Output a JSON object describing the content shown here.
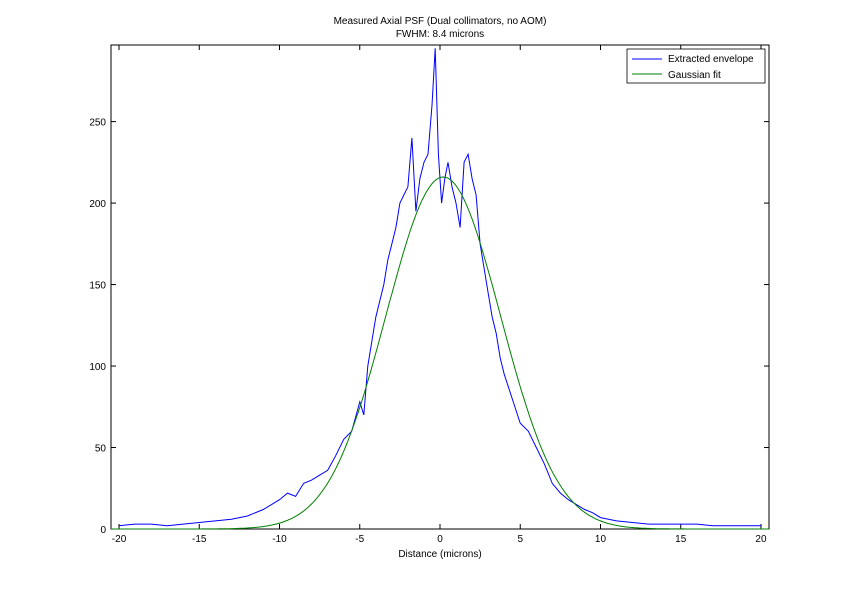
{
  "chart_data": {
    "type": "line",
    "title": "Measured Axial PSF (Dual collimators, no AOM)",
    "subtitle": "FWHM: 8.4 microns",
    "xlabel": "Distance (microns)",
    "ylabel": "",
    "xlim": [
      -20.5,
      20.5
    ],
    "ylim": [
      0,
      297
    ],
    "xticks": [
      -20,
      -15,
      -10,
      -5,
      0,
      5,
      10,
      15,
      20
    ],
    "yticks": [
      0,
      50,
      100,
      150,
      200,
      250
    ],
    "grid": false,
    "legend_position": "top-right",
    "series": [
      {
        "name": "Extracted envelope",
        "color": "#0000ff",
        "x": [
          -20,
          -19,
          -18,
          -17,
          -16,
          -15,
          -14,
          -13,
          -12,
          -11,
          -10.5,
          -10,
          -9.5,
          -9,
          -8.5,
          -8,
          -7.5,
          -7,
          -6.5,
          -6,
          -5.5,
          -5,
          -4.75,
          -4.5,
          -4.25,
          -4,
          -3.75,
          -3.5,
          -3.25,
          -3,
          -2.75,
          -2.5,
          -2.25,
          -2,
          -1.75,
          -1.5,
          -1.25,
          -1,
          -0.75,
          -0.5,
          -0.3,
          -0.1,
          0.1,
          0.3,
          0.5,
          0.75,
          1,
          1.25,
          1.5,
          1.75,
          2,
          2.25,
          2.5,
          2.75,
          3,
          3.25,
          3.5,
          3.75,
          4,
          4.5,
          5,
          5.5,
          6,
          6.5,
          7,
          7.5,
          8,
          8.5,
          9,
          9.5,
          10,
          10.5,
          11,
          12,
          13,
          14,
          15,
          16,
          17,
          18,
          19,
          20
        ],
        "y": [
          2,
          3,
          3,
          2,
          3,
          4,
          5,
          6,
          8,
          12,
          15,
          18,
          22,
          20,
          28,
          30,
          33,
          36,
          45,
          55,
          60,
          78,
          70,
          100,
          115,
          130,
          140,
          150,
          165,
          175,
          185,
          200,
          205,
          210,
          240,
          195,
          215,
          225,
          230,
          260,
          295,
          230,
          200,
          215,
          225,
          210,
          200,
          185,
          225,
          230,
          215,
          205,
          175,
          160,
          145,
          130,
          120,
          105,
          95,
          80,
          65,
          60,
          50,
          40,
          28,
          22,
          18,
          15,
          12,
          10,
          7,
          6,
          5,
          4,
          3,
          3,
          3,
          3,
          2,
          2,
          2,
          2
        ]
      },
      {
        "name": "Gaussian fit",
        "color": "#008000",
        "function": "gaussian",
        "amplitude": 216,
        "center": 0.2,
        "fwhm": 8.4
      }
    ]
  }
}
